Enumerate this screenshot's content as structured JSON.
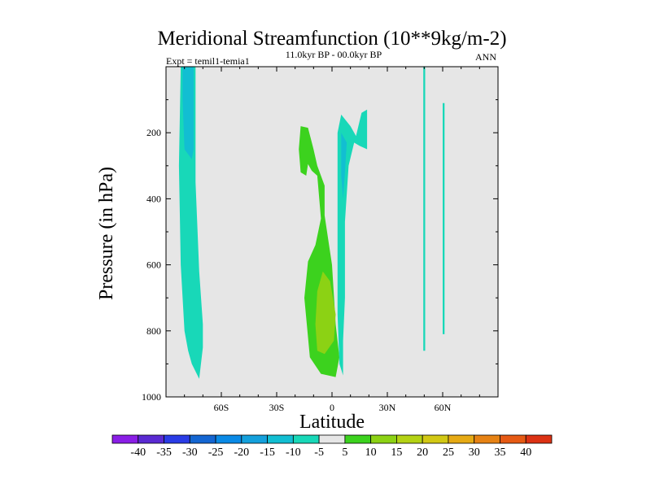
{
  "chart_data": {
    "type": "contour",
    "title": "Meridional Streamfunction (10**9kg/m-2)",
    "subtitle": "11.0kyr BP - 00.0kyr BP",
    "left_label": "Expt = temil1-temia1",
    "right_label": "ANN",
    "xlabel": "Latitude",
    "ylabel": "Pressure (in hPa)",
    "xlim": [
      -90,
      90
    ],
    "ylim": [
      1000,
      0
    ],
    "x_ticks": [
      {
        "value": -60,
        "label": "60S"
      },
      {
        "value": -30,
        "label": "30S"
      },
      {
        "value": 0,
        "label": "0"
      },
      {
        "value": 30,
        "label": "30N"
      },
      {
        "value": 60,
        "label": "60N"
      }
    ],
    "y_ticks": [
      {
        "value": 200,
        "label": "200"
      },
      {
        "value": 400,
        "label": "400"
      },
      {
        "value": 600,
        "label": "600"
      },
      {
        "value": 800,
        "label": "800"
      },
      {
        "value": 1000,
        "label": "1000"
      }
    ],
    "background_color": "#e6e6e6",
    "colorbar": {
      "labels": [
        "-40",
        "-35",
        "-30",
        "-25",
        "-20",
        "-15",
        "-10",
        "-5",
        "5",
        "10",
        "15",
        "20",
        "25",
        "30",
        "35",
        "40"
      ],
      "colors": [
        "#8a1ee6",
        "#5a2ad2",
        "#2a3ce6",
        "#1466d2",
        "#0a8ae6",
        "#14a0dc",
        "#12bed2",
        "#18d8b8",
        "#e6e6e6",
        "#3cd21e",
        "#8cd214",
        "#b4d214",
        "#d2c814",
        "#e6aa14",
        "#e68214",
        "#e65a14",
        "#dc3214"
      ]
    },
    "regions": [
      {
        "name": "sh-polar-cell",
        "color": "#18d8b8",
        "points": [
          [
            -82,
            0
          ],
          [
            -74,
            0
          ],
          [
            -74,
            350
          ],
          [
            -72,
            620
          ],
          [
            -70,
            780
          ],
          [
            -70,
            850
          ],
          [
            -72,
            945
          ],
          [
            -76,
            900
          ],
          [
            -78,
            860
          ],
          [
            -80,
            800
          ],
          [
            -82,
            600
          ],
          [
            -83,
            300
          ]
        ]
      },
      {
        "name": "sh-polar-core",
        "color": "#12bed2",
        "points": [
          [
            -81,
            0
          ],
          [
            -75,
            0
          ],
          [
            -75,
            250
          ],
          [
            -76,
            280
          ],
          [
            -80,
            250
          ],
          [
            -81,
            100
          ]
        ]
      },
      {
        "name": "tropical-positive",
        "color": "#3cd21e",
        "points": [
          [
            -17,
            180
          ],
          [
            -13,
            185
          ],
          [
            -10,
            250
          ],
          [
            -8,
            300
          ],
          [
            -4,
            360
          ],
          [
            -4,
            450
          ],
          [
            0,
            600
          ],
          [
            2,
            780
          ],
          [
            4,
            880
          ],
          [
            2,
            940
          ],
          [
            -6,
            930
          ],
          [
            -12,
            880
          ],
          [
            -15,
            700
          ],
          [
            -13,
            590
          ],
          [
            -9,
            540
          ],
          [
            -6,
            460
          ],
          [
            -8,
            330
          ],
          [
            -11,
            315
          ],
          [
            -13,
            295
          ],
          [
            -14,
            330
          ],
          [
            -17,
            320
          ],
          [
            -18,
            250
          ]
        ]
      },
      {
        "name": "tropical-positive-core",
        "color": "#8cd214",
        "points": [
          [
            -5,
            620
          ],
          [
            -1,
            650
          ],
          [
            2,
            750
          ],
          [
            1,
            830
          ],
          [
            -4,
            870
          ],
          [
            -8,
            860
          ],
          [
            -9,
            780
          ],
          [
            -8,
            680
          ]
        ]
      },
      {
        "name": "tropical-negative",
        "color": "#18d8b8",
        "points": [
          [
            5,
            145
          ],
          [
            10,
            180
          ],
          [
            13,
            210
          ],
          [
            16,
            140
          ],
          [
            19,
            130
          ],
          [
            19,
            250
          ],
          [
            15,
            240
          ],
          [
            12,
            230
          ],
          [
            9,
            300
          ],
          [
            7,
            470
          ],
          [
            7,
            700
          ],
          [
            6,
            830
          ],
          [
            6,
            935
          ],
          [
            4,
            900
          ],
          [
            3,
            750
          ],
          [
            3,
            560
          ],
          [
            3,
            300
          ],
          [
            3,
            200
          ]
        ]
      },
      {
        "name": "tropical-negative-core",
        "color": "#12bed2",
        "points": [
          [
            5,
            200
          ],
          [
            8,
            230
          ],
          [
            7,
            320
          ],
          [
            6,
            400
          ],
          [
            5,
            330
          ]
        ]
      },
      {
        "name": "nh-band-1",
        "color": "#18d8b8",
        "points": [
          [
            49.5,
            0
          ],
          [
            50.5,
            0
          ],
          [
            50.5,
            600
          ],
          [
            50.5,
            860
          ],
          [
            49.5,
            860
          ],
          [
            49.5,
            600
          ]
        ]
      },
      {
        "name": "nh-band-2",
        "color": "#18d8b8",
        "points": [
          [
            60,
            110
          ],
          [
            61,
            110
          ],
          [
            61,
            810
          ],
          [
            60,
            810
          ]
        ]
      }
    ]
  }
}
